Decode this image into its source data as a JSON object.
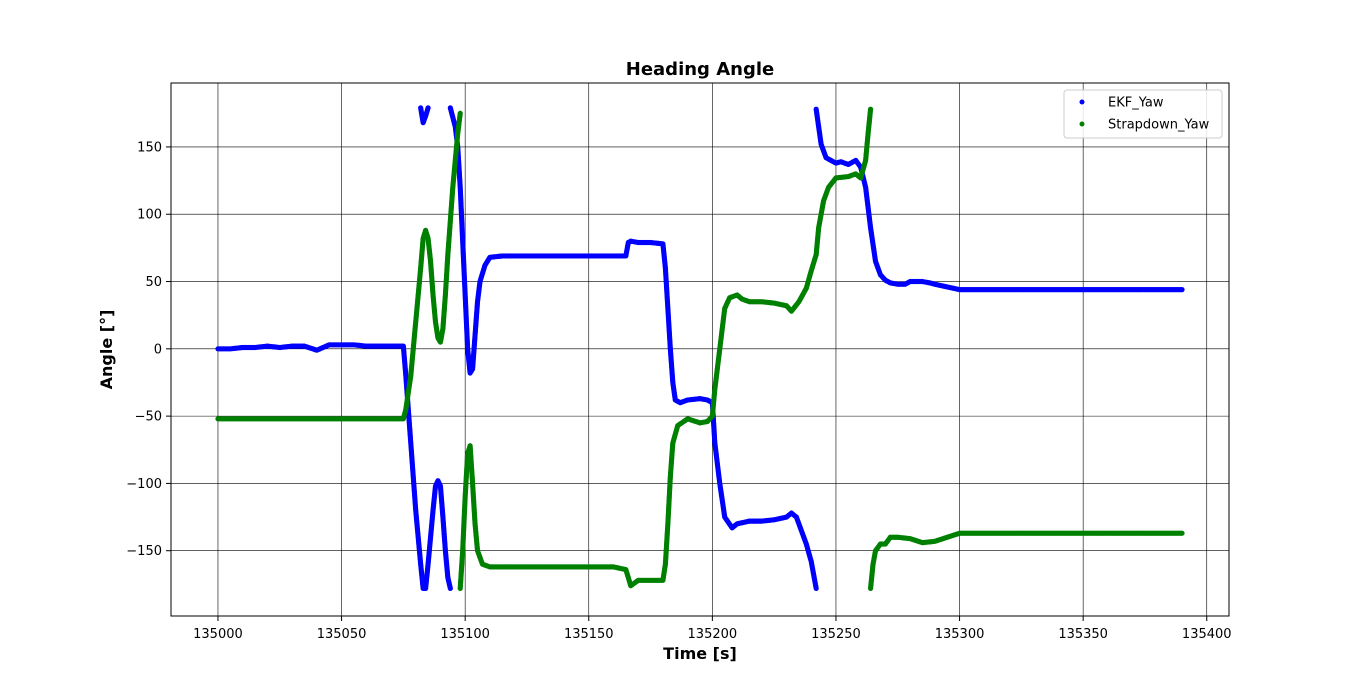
{
  "chart_data": {
    "type": "scatter",
    "title": "Heading Angle",
    "xlabel": "Time [s]",
    "ylabel": "Angle [°]",
    "xlim": [
      134981,
      135409
    ],
    "ylim": [
      -198.5,
      197.5
    ],
    "xticks": [
      135000,
      135050,
      135100,
      135150,
      135200,
      135250,
      135300,
      135350,
      135400
    ],
    "yticks": [
      -150,
      -100,
      -50,
      0,
      50,
      100,
      150
    ],
    "xtick_labels": [
      "135000",
      "135050",
      "135100",
      "135150",
      "135200",
      "135250",
      "135300",
      "135350",
      "135400"
    ],
    "ytick_labels": [
      "−150",
      "−100",
      "−50",
      "0",
      "50",
      "100",
      "150"
    ],
    "grid": true,
    "legend_position": "top-right",
    "series": [
      {
        "name": "EKF_Yaw",
        "color": "#0000ff",
        "segments": [
          [
            [
              135000,
              0
            ],
            [
              135005,
              0
            ],
            [
              135010,
              1
            ],
            [
              135015,
              1
            ],
            [
              135020,
              2
            ],
            [
              135025,
              1
            ],
            [
              135030,
              2
            ],
            [
              135035,
              2
            ],
            [
              135040,
              -1
            ],
            [
              135045,
              3
            ],
            [
              135050,
              3
            ],
            [
              135055,
              3
            ],
            [
              135060,
              2
            ],
            [
              135065,
              2
            ],
            [
              135070,
              2
            ],
            [
              135075,
              2
            ],
            [
              135076,
              -20
            ],
            [
              135078,
              -70
            ],
            [
              135080,
              -120
            ],
            [
              135082,
              -160
            ],
            [
              135083,
              -178
            ],
            [
              135084,
              -178
            ],
            [
              135085,
              -160
            ],
            [
              135086,
              -140
            ],
            [
              135087,
              -120
            ],
            [
              135088,
              -102
            ],
            [
              135089,
              -98
            ],
            [
              135090,
              -102
            ],
            [
              135091,
              -125
            ],
            [
              135092,
              -150
            ],
            [
              135093,
              -170
            ],
            [
              135094,
              -178
            ]
          ],
          [
            [
              135082,
              179
            ],
            [
              135083,
              168
            ],
            [
              135084,
              173
            ],
            [
              135085,
              179
            ]
          ],
          [
            [
              135094,
              179
            ],
            [
              135096,
              165
            ],
            [
              135097,
              150
            ],
            [
              135098,
              120
            ],
            [
              135099,
              80
            ],
            [
              135100,
              40
            ],
            [
              135101,
              0
            ],
            [
              135102,
              -18
            ],
            [
              135103,
              -15
            ],
            [
              135104,
              10
            ],
            [
              135105,
              35
            ],
            [
              135106,
              50
            ],
            [
              135108,
              62
            ],
            [
              135110,
              68
            ],
            [
              135115,
              69
            ],
            [
              135120,
              69
            ],
            [
              135130,
              69
            ],
            [
              135140,
              69
            ],
            [
              135150,
              69
            ],
            [
              135160,
              69
            ],
            [
              135165,
              69
            ],
            [
              135166,
              79
            ],
            [
              135167,
              80
            ],
            [
              135170,
              79
            ],
            [
              135175,
              79
            ],
            [
              135180,
              78
            ],
            [
              135181,
              60
            ],
            [
              135182,
              30
            ],
            [
              135183,
              0
            ],
            [
              135184,
              -25
            ],
            [
              135185,
              -38
            ],
            [
              135187,
              -40
            ],
            [
              135190,
              -38
            ],
            [
              135195,
              -37
            ],
            [
              135198,
              -38
            ],
            [
              135200,
              -40
            ],
            [
              135201,
              -70
            ],
            [
              135203,
              -100
            ],
            [
              135205,
              -125
            ],
            [
              135208,
              -133
            ],
            [
              135210,
              -130
            ],
            [
              135215,
              -128
            ],
            [
              135220,
              -128
            ],
            [
              135225,
              -127
            ],
            [
              135230,
              -125
            ],
            [
              135232,
              -122
            ],
            [
              135234,
              -125
            ],
            [
              135236,
              -135
            ],
            [
              135238,
              -145
            ],
            [
              135240,
              -158
            ],
            [
              135242,
              -178
            ]
          ],
          [
            [
              135242,
              178
            ],
            [
              135243,
              165
            ],
            [
              135244,
              152
            ],
            [
              135246,
              142
            ],
            [
              135250,
              138
            ],
            [
              135252,
              139
            ],
            [
              135255,
              137
            ],
            [
              135258,
              140
            ],
            [
              135260,
              135
            ],
            [
              135262,
              120
            ],
            [
              135264,
              90
            ],
            [
              135266,
              65
            ],
            [
              135268,
              55
            ],
            [
              135270,
              51
            ],
            [
              135272,
              49
            ],
            [
              135275,
              48
            ],
            [
              135278,
              48
            ],
            [
              135280,
              50
            ],
            [
              135285,
              50
            ],
            [
              135288,
              49
            ],
            [
              135290,
              48
            ],
            [
              135295,
              46
            ],
            [
              135300,
              44
            ],
            [
              135310,
              44
            ],
            [
              135320,
              44
            ],
            [
              135330,
              44
            ],
            [
              135340,
              44
            ],
            [
              135350,
              44
            ],
            [
              135360,
              44
            ],
            [
              135370,
              44
            ],
            [
              135380,
              44
            ],
            [
              135390,
              44
            ]
          ]
        ]
      },
      {
        "name": "Strapdown_Yaw",
        "color": "#008000",
        "segments": [
          [
            [
              135000,
              -52
            ],
            [
              135010,
              -52
            ],
            [
              135020,
              -52
            ],
            [
              135030,
              -52
            ],
            [
              135040,
              -52
            ],
            [
              135050,
              -52
            ],
            [
              135060,
              -52
            ],
            [
              135070,
              -52
            ],
            [
              135075,
              -52
            ],
            [
              135076,
              -45
            ],
            [
              135078,
              -20
            ],
            [
              135080,
              20
            ],
            [
              135082,
              60
            ],
            [
              135083,
              82
            ],
            [
              135084,
              88
            ],
            [
              135085,
              82
            ],
            [
              135086,
              65
            ],
            [
              135087,
              40
            ],
            [
              135088,
              20
            ],
            [
              135089,
              8
            ],
            [
              135090,
              5
            ],
            [
              135091,
              15
            ],
            [
              135092,
              40
            ],
            [
              135093,
              70
            ],
            [
              135094,
              95
            ],
            [
              135095,
              120
            ],
            [
              135096,
              140
            ],
            [
              135097,
              160
            ],
            [
              135098,
              175
            ]
          ],
          [
            [
              135098,
              -178
            ],
            [
              135099,
              -150
            ],
            [
              135100,
              -110
            ],
            [
              135101,
              -78
            ],
            [
              135102,
              -72
            ],
            [
              135103,
              -100
            ],
            [
              135104,
              -130
            ],
            [
              135105,
              -150
            ],
            [
              135107,
              -160
            ],
            [
              135110,
              -162
            ],
            [
              135120,
              -162
            ],
            [
              135130,
              -162
            ],
            [
              135140,
              -162
            ],
            [
              135150,
              -162
            ],
            [
              135160,
              -162
            ],
            [
              135165,
              -164
            ],
            [
              135167,
              -176
            ],
            [
              135170,
              -172
            ],
            [
              135175,
              -172
            ],
            [
              135180,
              -172
            ],
            [
              135181,
              -160
            ],
            [
              135182,
              -130
            ],
            [
              135183,
              -95
            ],
            [
              135184,
              -70
            ],
            [
              135186,
              -57
            ],
            [
              135190,
              -52
            ],
            [
              135195,
              -55
            ],
            [
              135198,
              -54
            ],
            [
              135200,
              -50
            ],
            [
              135201,
              -30
            ],
            [
              135203,
              0
            ],
            [
              135205,
              30
            ],
            [
              135207,
              38
            ],
            [
              135210,
              40
            ],
            [
              135212,
              37
            ],
            [
              135215,
              35
            ],
            [
              135220,
              35
            ],
            [
              135225,
              34
            ],
            [
              135230,
              32
            ],
            [
              135232,
              28
            ],
            [
              135235,
              35
            ],
            [
              135238,
              45
            ],
            [
              135240,
              58
            ],
            [
              135242,
              70
            ],
            [
              135243,
              90
            ],
            [
              135245,
              110
            ],
            [
              135247,
              120
            ],
            [
              135250,
              127
            ],
            [
              135255,
              128
            ],
            [
              135258,
              130
            ],
            [
              135260,
              127
            ],
            [
              135262,
              140
            ],
            [
              135263,
              160
            ],
            [
              135264,
              178
            ]
          ],
          [
            [
              135264,
              -178
            ],
            [
              135265,
              -160
            ],
            [
              135266,
              -150
            ],
            [
              135268,
              -145
            ],
            [
              135270,
              -145
            ],
            [
              135272,
              -140
            ],
            [
              135275,
              -140
            ],
            [
              135280,
              -141
            ],
            [
              135285,
              -144
            ],
            [
              135290,
              -143
            ],
            [
              135295,
              -140
            ],
            [
              135300,
              -137
            ],
            [
              135310,
              -137
            ],
            [
              135320,
              -137
            ],
            [
              135330,
              -137
            ],
            [
              135340,
              -137
            ],
            [
              135350,
              -137
            ],
            [
              135360,
              -137
            ],
            [
              135370,
              -137
            ],
            [
              135380,
              -137
            ],
            [
              135390,
              -137
            ]
          ]
        ]
      }
    ]
  }
}
